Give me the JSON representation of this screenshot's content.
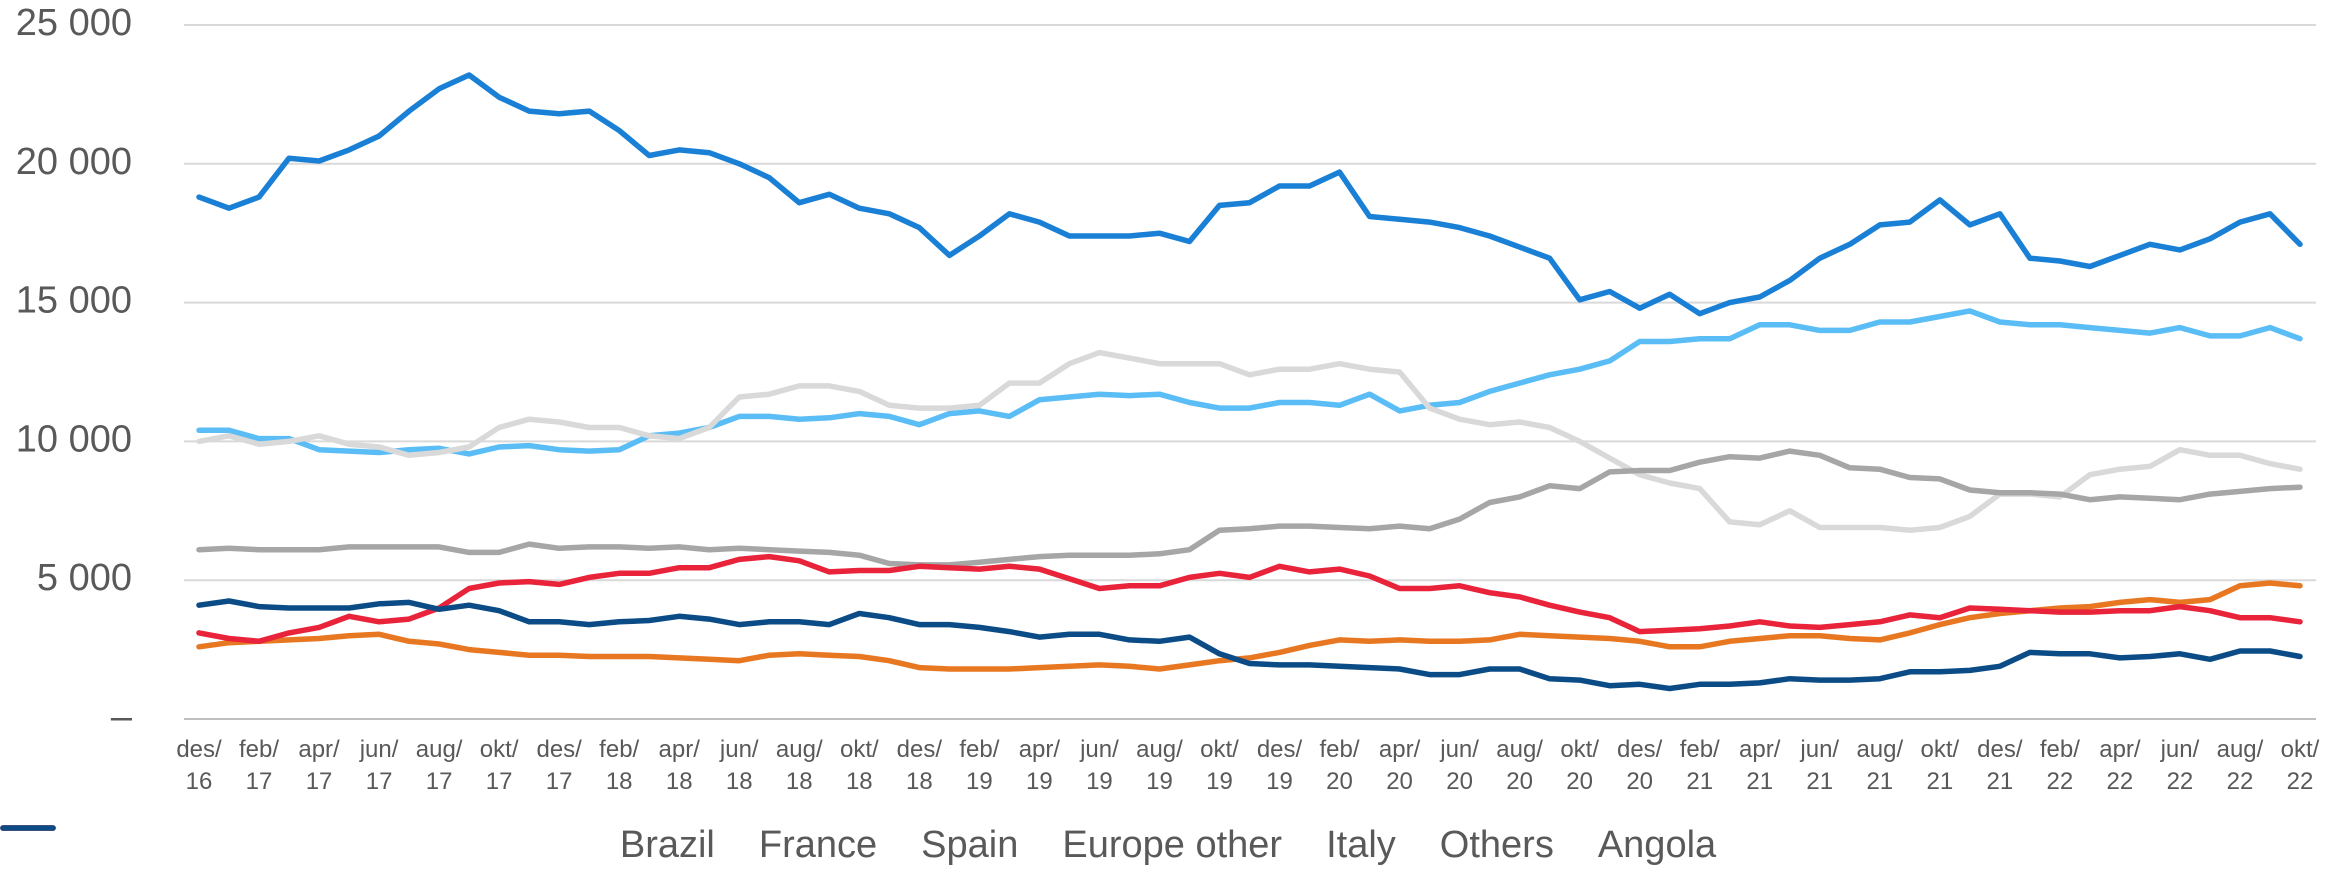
{
  "chart_data": {
    "type": "line",
    "categories": [
      "des/\n16",
      null,
      "feb/\n17",
      null,
      "apr/\n17",
      null,
      "jun/\n17",
      null,
      "aug/\n17",
      null,
      "okt/\n17",
      null,
      "des/\n17",
      null,
      "feb/\n18",
      null,
      "apr/\n18",
      null,
      "jun/\n18",
      null,
      "aug/\n18",
      null,
      "okt/\n18",
      null,
      "des/\n18",
      null,
      "feb/\n19",
      null,
      "apr/\n19",
      null,
      "jun/\n19",
      null,
      "aug/\n19",
      null,
      "okt/\n19",
      null,
      "des/\n19",
      null,
      "feb/\n20",
      null,
      "apr/\n20",
      null,
      "jun/\n20",
      null,
      "aug/\n20",
      null,
      "okt/\n20",
      null,
      "des/\n20",
      null,
      "feb/\n21",
      null,
      "apr/\n21",
      null,
      "jun/\n21",
      null,
      "aug/\n21",
      null,
      "okt/\n21",
      null,
      "des/\n21",
      null,
      "feb/\n22",
      null,
      "apr/\n22",
      null,
      "jun/\n22",
      null,
      "aug/\n22",
      null,
      "okt/\n22"
    ],
    "series": [
      {
        "name": "Brazil",
        "color": "#1a80d6",
        "values": [
          18800,
          18400,
          18800,
          20200,
          20100,
          20500,
          21000,
          21900,
          22700,
          23200,
          22400,
          21900,
          21800,
          21900,
          21200,
          20300,
          20500,
          20400,
          20000,
          19500,
          18600,
          18900,
          18400,
          18200,
          17700,
          16700,
          17400,
          18200,
          17900,
          17400,
          17400,
          17400,
          17500,
          17200,
          18500,
          18600,
          19200,
          19200,
          19700,
          18100,
          18000,
          17900,
          17700,
          17400,
          17000,
          16600,
          15100,
          15400,
          14800,
          15300,
          14600,
          15000,
          15200,
          15800,
          16600,
          17100,
          17800,
          17900,
          18700,
          17800,
          18200,
          16600,
          16500,
          16300,
          16700,
          17100,
          16900,
          17300,
          17900,
          18200,
          17100
        ]
      },
      {
        "name": "France",
        "color": "#5bbdf5",
        "values": [
          10400,
          10400,
          10100,
          10100,
          9700,
          9650,
          9600,
          9700,
          9750,
          9550,
          9800,
          9850,
          9700,
          9650,
          9700,
          10200,
          10300,
          10500,
          10900,
          10900,
          10800,
          10850,
          11000,
          10900,
          10600,
          11000,
          11100,
          10900,
          11500,
          11600,
          11700,
          11650,
          11700,
          11400,
          11200,
          11200,
          11400,
          11400,
          11300,
          11700,
          11100,
          11300,
          11400,
          11800,
          12100,
          12400,
          12600,
          12900,
          13600,
          13600,
          13700,
          13700,
          14200,
          14200,
          14000,
          14000,
          14300,
          14300,
          14500,
          14700,
          14300,
          14200,
          14200,
          14100,
          14000,
          13900,
          14100,
          13800,
          13800,
          14100,
          13700
        ]
      },
      {
        "name": "Spain",
        "color": "#d9d9d9",
        "values": [
          10000,
          10200,
          9900,
          10000,
          10200,
          9900,
          9800,
          9500,
          9600,
          9800,
          10500,
          10800,
          10700,
          10500,
          10500,
          10200,
          10100,
          10500,
          11600,
          11700,
          12000,
          12000,
          11800,
          11300,
          11200,
          11200,
          11300,
          12100,
          12100,
          12800,
          13200,
          13000,
          12800,
          12800,
          12800,
          12400,
          12600,
          12600,
          12800,
          12600,
          12500,
          11200,
          10800,
          10600,
          10700,
          10500,
          10000,
          9400,
          8800,
          8500,
          8300,
          7100,
          7000,
          7500,
          6900,
          6900,
          6900,
          6800,
          6900,
          7300,
          8100,
          8100,
          8000,
          8800,
          9000,
          9100,
          9700,
          9500,
          9500,
          9200,
          9000
        ]
      },
      {
        "name": "Europe other",
        "color": "#a6a6a6",
        "values": [
          6100,
          6150,
          6100,
          6100,
          6100,
          6200,
          6200,
          6200,
          6200,
          6000,
          6000,
          6300,
          6150,
          6200,
          6200,
          6150,
          6200,
          6100,
          6150,
          6100,
          6050,
          6000,
          5900,
          5600,
          5550,
          5550,
          5650,
          5750,
          5850,
          5900,
          5900,
          5900,
          5950,
          6100,
          6800,
          6850,
          6950,
          6950,
          6900,
          6850,
          6950,
          6850,
          7200,
          7800,
          8000,
          8400,
          8300,
          8900,
          8950,
          8950,
          9250,
          9450,
          9400,
          9650,
          9500,
          9050,
          9000,
          8700,
          8650,
          8250,
          8150,
          8150,
          8100,
          7900,
          8000,
          7950,
          7900,
          8100,
          8200,
          8300,
          8350
        ]
      },
      {
        "name": "Italy",
        "color": "#e87722",
        "values": [
          2600,
          2750,
          2800,
          2850,
          2900,
          3000,
          3050,
          2800,
          2700,
          2500,
          2400,
          2300,
          2300,
          2250,
          2250,
          2250,
          2200,
          2150,
          2100,
          2300,
          2350,
          2300,
          2250,
          2100,
          1850,
          1800,
          1800,
          1800,
          1850,
          1900,
          1950,
          1900,
          1800,
          1950,
          2100,
          2200,
          2400,
          2650,
          2850,
          2800,
          2850,
          2800,
          2800,
          2850,
          3050,
          3000,
          2950,
          2900,
          2800,
          2600,
          2600,
          2800,
          2900,
          3000,
          3000,
          2900,
          2850,
          3100,
          3400,
          3650,
          3800,
          3900,
          4000,
          4050,
          4200,
          4300,
          4200,
          4300,
          4800,
          4900,
          4800
        ]
      },
      {
        "name": "Others",
        "color": "#e8233a",
        "values": [
          3100,
          2900,
          2800,
          3100,
          3300,
          3700,
          3500,
          3600,
          4000,
          4700,
          4900,
          4950,
          4850,
          5100,
          5250,
          5250,
          5450,
          5450,
          5750,
          5850,
          5700,
          5300,
          5350,
          5350,
          5500,
          5450,
          5400,
          5500,
          5400,
          5050,
          4700,
          4800,
          4800,
          5100,
          5250,
          5100,
          5500,
          5300,
          5400,
          5150,
          4700,
          4700,
          4800,
          4550,
          4400,
          4100,
          3850,
          3650,
          3150,
          3200,
          3250,
          3350,
          3500,
          3350,
          3300,
          3400,
          3500,
          3750,
          3650,
          4000,
          3950,
          3900,
          3850,
          3850,
          3900,
          3900,
          4050,
          3900,
          3650,
          3650,
          3500
        ]
      },
      {
        "name": "Angola",
        "color": "#0b4c86",
        "values": [
          4100,
          4250,
          4050,
          4000,
          4000,
          4000,
          4150,
          4200,
          3950,
          4100,
          3900,
          3500,
          3500,
          3400,
          3500,
          3550,
          3700,
          3600,
          3400,
          3500,
          3500,
          3400,
          3800,
          3650,
          3400,
          3400,
          3300,
          3150,
          2950,
          3050,
          3050,
          2850,
          2800,
          2950,
          2350,
          2000,
          1950,
          1950,
          1900,
          1850,
          1800,
          1600,
          1600,
          1800,
          1800,
          1450,
          1400,
          1200,
          1250,
          1100,
          1250,
          1250,
          1300,
          1450,
          1400,
          1400,
          1450,
          1700,
          1700,
          1750,
          1900,
          2400,
          2350,
          2350,
          2200,
          2250,
          2350,
          2150,
          2450,
          2450,
          2250
        ]
      }
    ],
    "ylim": [
      0,
      25000
    ],
    "yticks": [
      {
        "value": 0,
        "label": "–"
      },
      {
        "value": 5000,
        "label": "5 000"
      },
      {
        "value": 10000,
        "label": "10 000"
      },
      {
        "value": 15000,
        "label": "15 000"
      },
      {
        "value": 20000,
        "label": "20 000"
      },
      {
        "value": 25000,
        "label": "25 000"
      }
    ],
    "grid": true,
    "legend": "bottom"
  }
}
